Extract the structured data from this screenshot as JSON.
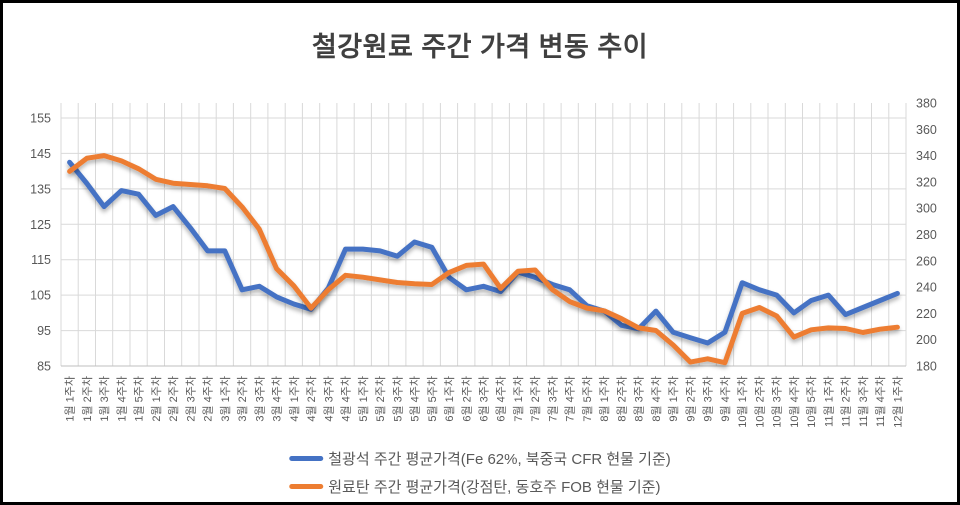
{
  "title": "철강원료 주간 가격 변동 추이",
  "colors": {
    "iron_ore": "#4472C4",
    "coking_coal": "#ED7D31",
    "grid": "#D9D9D9",
    "axis_line": "#BFBFBF",
    "axis_text": "#595959",
    "title_text": "#404040",
    "frame": "#000000",
    "background": "#FFFFFF"
  },
  "chart_data": {
    "type": "line",
    "title": "철강원료 주간 가격 변동 추이",
    "grid": true,
    "legend_position": "bottom",
    "categories": [
      "1월 1주차",
      "1월 2주차",
      "1월 3주차",
      "1월 4주차",
      "1월 5주차",
      "2월 1주차",
      "2월 2주차",
      "2월 3주차",
      "2월 4주차",
      "3월 1주차",
      "3월 2주차",
      "3월 3주차",
      "3월 4주차",
      "4월 1주차",
      "4월 2주차",
      "4월 3주차",
      "4월 4주차",
      "5월 1주차",
      "5월 2주차",
      "5월 3주차",
      "5월 4주차",
      "5월 5주차",
      "6월 1주차",
      "6월 2주차",
      "6월 3주차",
      "6월 4주차",
      "7월 1주차",
      "7월 2주차",
      "7월 3주차",
      "7월 4주차",
      "7월 5주차",
      "8월 1주차",
      "8월 2주차",
      "8월 3주차",
      "8월 4주차",
      "9월 1주차",
      "9월 2주차",
      "9월 3주차",
      "9월 4주차",
      "10월 1주차",
      "10월 2주차",
      "10월 3주차",
      "10월 4주차",
      "10월 5주차",
      "11월 1주차",
      "11월 2주차",
      "11월 3주차",
      "11월 4주차",
      "12월 1주차"
    ],
    "series": [
      {
        "name": "철광석 주간 평균가격(Fe 62%, 북중국 CFR 현물 기준)",
        "axis": "left",
        "color": "#4472C4",
        "values": [
          142.5,
          136.5,
          130,
          134.5,
          133.5,
          127.5,
          130,
          124,
          117.5,
          117.5,
          106.5,
          107.5,
          104.5,
          102.5,
          101,
          107,
          118,
          118,
          117.5,
          116,
          120,
          118.5,
          110,
          106.5,
          107.5,
          106,
          111.5,
          110,
          108,
          106.5,
          102,
          100.5,
          96.5,
          95.5,
          100.5,
          94.5,
          93,
          91.5,
          94.5,
          108.5,
          106.5,
          105,
          100,
          103.5,
          105,
          99.5,
          101.5,
          103.5,
          105.5
        ]
      },
      {
        "name": "원료탄 주간 평균가격(강점탄, 동호주 FOB 현물 기준)",
        "axis": "right",
        "color": "#ED7D31",
        "values": [
          328,
          338,
          340,
          336,
          330,
          322,
          319,
          318,
          317,
          315,
          301,
          284,
          254,
          241,
          224,
          238,
          249,
          247.5,
          245.5,
          243.5,
          242.5,
          242,
          251,
          256.5,
          257.5,
          239,
          252,
          253,
          238,
          229,
          224,
          222,
          216,
          209,
          207,
          196,
          183,
          185.5,
          182.5,
          220,
          224.5,
          218,
          202,
          207.5,
          209,
          208.5,
          205.5,
          208,
          209.5
        ]
      }
    ],
    "left_axis": {
      "min": 85,
      "max": 155,
      "step": 10,
      "ticks": [
        155,
        145,
        135,
        125,
        115,
        105,
        95,
        85
      ]
    },
    "right_axis": {
      "min": 180,
      "max": 380,
      "step": 20,
      "ticks": [
        380,
        360,
        340,
        320,
        300,
        280,
        260,
        240,
        220,
        200,
        180
      ]
    }
  }
}
